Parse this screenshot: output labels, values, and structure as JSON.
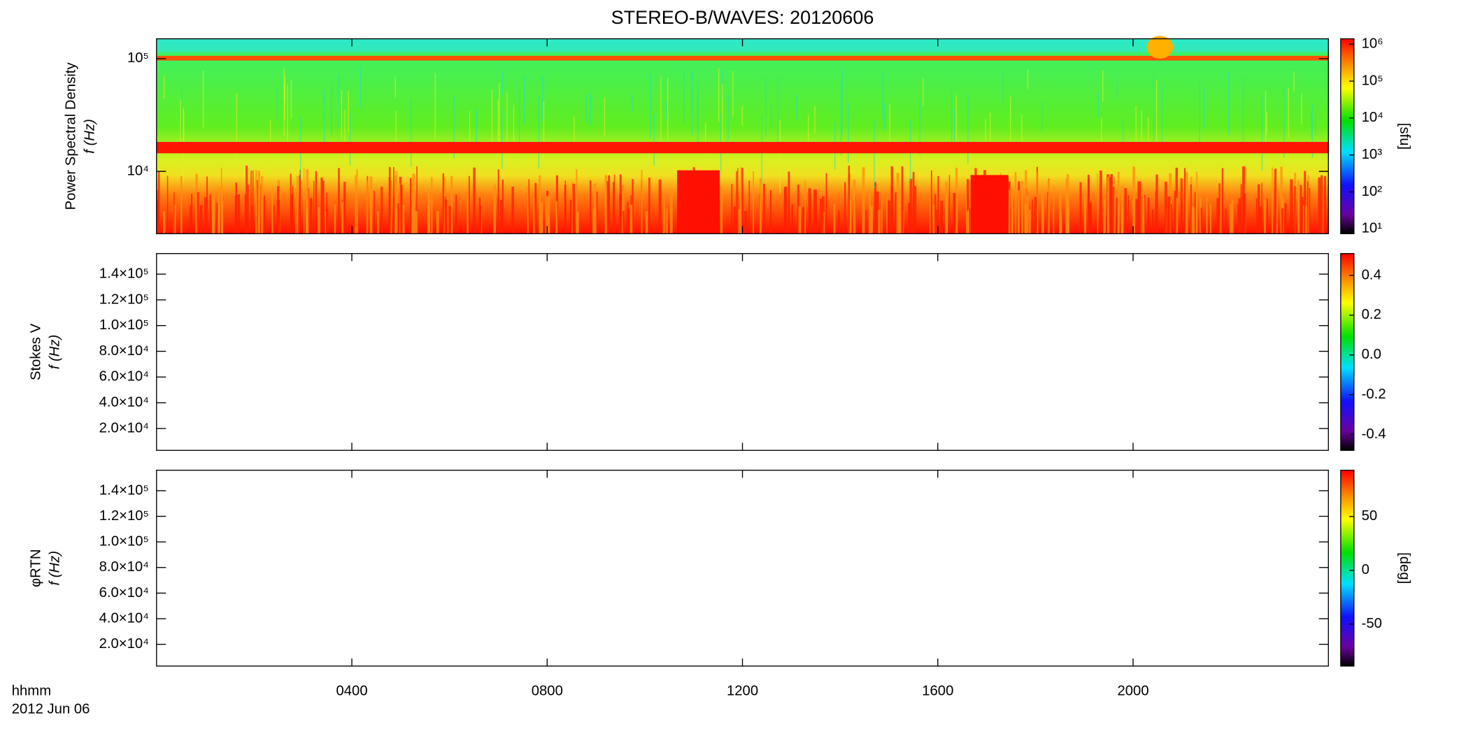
{
  "title": "STEREO-B/WAVES: 20120606",
  "time_axis": {
    "label": "hhmm",
    "date": "2012 Jun 06",
    "xlim": [
      0,
      24
    ],
    "xticks": [
      {
        "value": 4,
        "label": "0400"
      },
      {
        "value": 8,
        "label": "0800"
      },
      {
        "value": 12,
        "label": "1200"
      },
      {
        "value": 16,
        "label": "1600"
      },
      {
        "value": 20,
        "label": "2000"
      }
    ]
  },
  "chart_data": [
    {
      "type": "spectrogram",
      "ylabel": "Power Spectral Density",
      "ylabel2": "f (Hz)",
      "log_y": true,
      "ylim": [
        2800,
        150000
      ],
      "yticks": [
        {
          "value": 10000,
          "label": "10⁴"
        },
        {
          "value": 100000,
          "label": "10⁵"
        }
      ],
      "colorbar": {
        "label": "[sfu]",
        "log": true,
        "ylim": [
          7.4,
          1400000
        ],
        "yticks": [
          {
            "value": 10,
            "label": "10¹"
          },
          {
            "value": 100,
            "label": "10²"
          },
          {
            "value": 1000,
            "label": "10³"
          },
          {
            "value": 10000,
            "label": "10⁴"
          },
          {
            "value": 100000,
            "label": "10⁵"
          },
          {
            "value": 1000000,
            "label": "10⁶"
          }
        ]
      }
    },
    {
      "type": "empty",
      "ylabel": "Stokes V",
      "ylabel2": "f (Hz)",
      "log_y": false,
      "ylim": [
        3000,
        156000
      ],
      "yticks": [
        {
          "value": 20000,
          "label": "2.0×10⁴"
        },
        {
          "value": 40000,
          "label": "4.0×10⁴"
        },
        {
          "value": 60000,
          "label": "6.0×10⁴"
        },
        {
          "value": 80000,
          "label": "8.0×10⁴"
        },
        {
          "value": 100000,
          "label": "1.0×10⁵"
        },
        {
          "value": 120000,
          "label": "1.2×10⁵"
        },
        {
          "value": 140000,
          "label": "1.4×10⁵"
        }
      ],
      "colorbar": {
        "log": false,
        "ylim": [
          -0.48,
          0.51
        ],
        "yticks": [
          -0.4,
          -0.2,
          {
            "value": 0,
            "label": "0.0"
          },
          0.2,
          0.4
        ]
      }
    },
    {
      "type": "empty",
      "ylabel": "φRTN",
      "ylabel2": "f (Hz)",
      "log_y": false,
      "ylim": [
        3000,
        156000
      ],
      "yticks": [
        {
          "value": 20000,
          "label": "2.0×10⁴"
        },
        {
          "value": 40000,
          "label": "4.0×10⁴"
        },
        {
          "value": 60000,
          "label": "6.0×10⁴"
        },
        {
          "value": 80000,
          "label": "8.0×10⁴"
        },
        {
          "value": 100000,
          "label": "1.0×10⁵"
        },
        {
          "value": 120000,
          "label": "1.2×10⁵"
        },
        {
          "value": 140000,
          "label": "1.4×10⁵"
        }
      ],
      "colorbar": {
        "label": "[deg]",
        "log": false,
        "ylim": [
          -89,
          93
        ],
        "yticks": [
          -50,
          0,
          50
        ]
      }
    }
  ]
}
